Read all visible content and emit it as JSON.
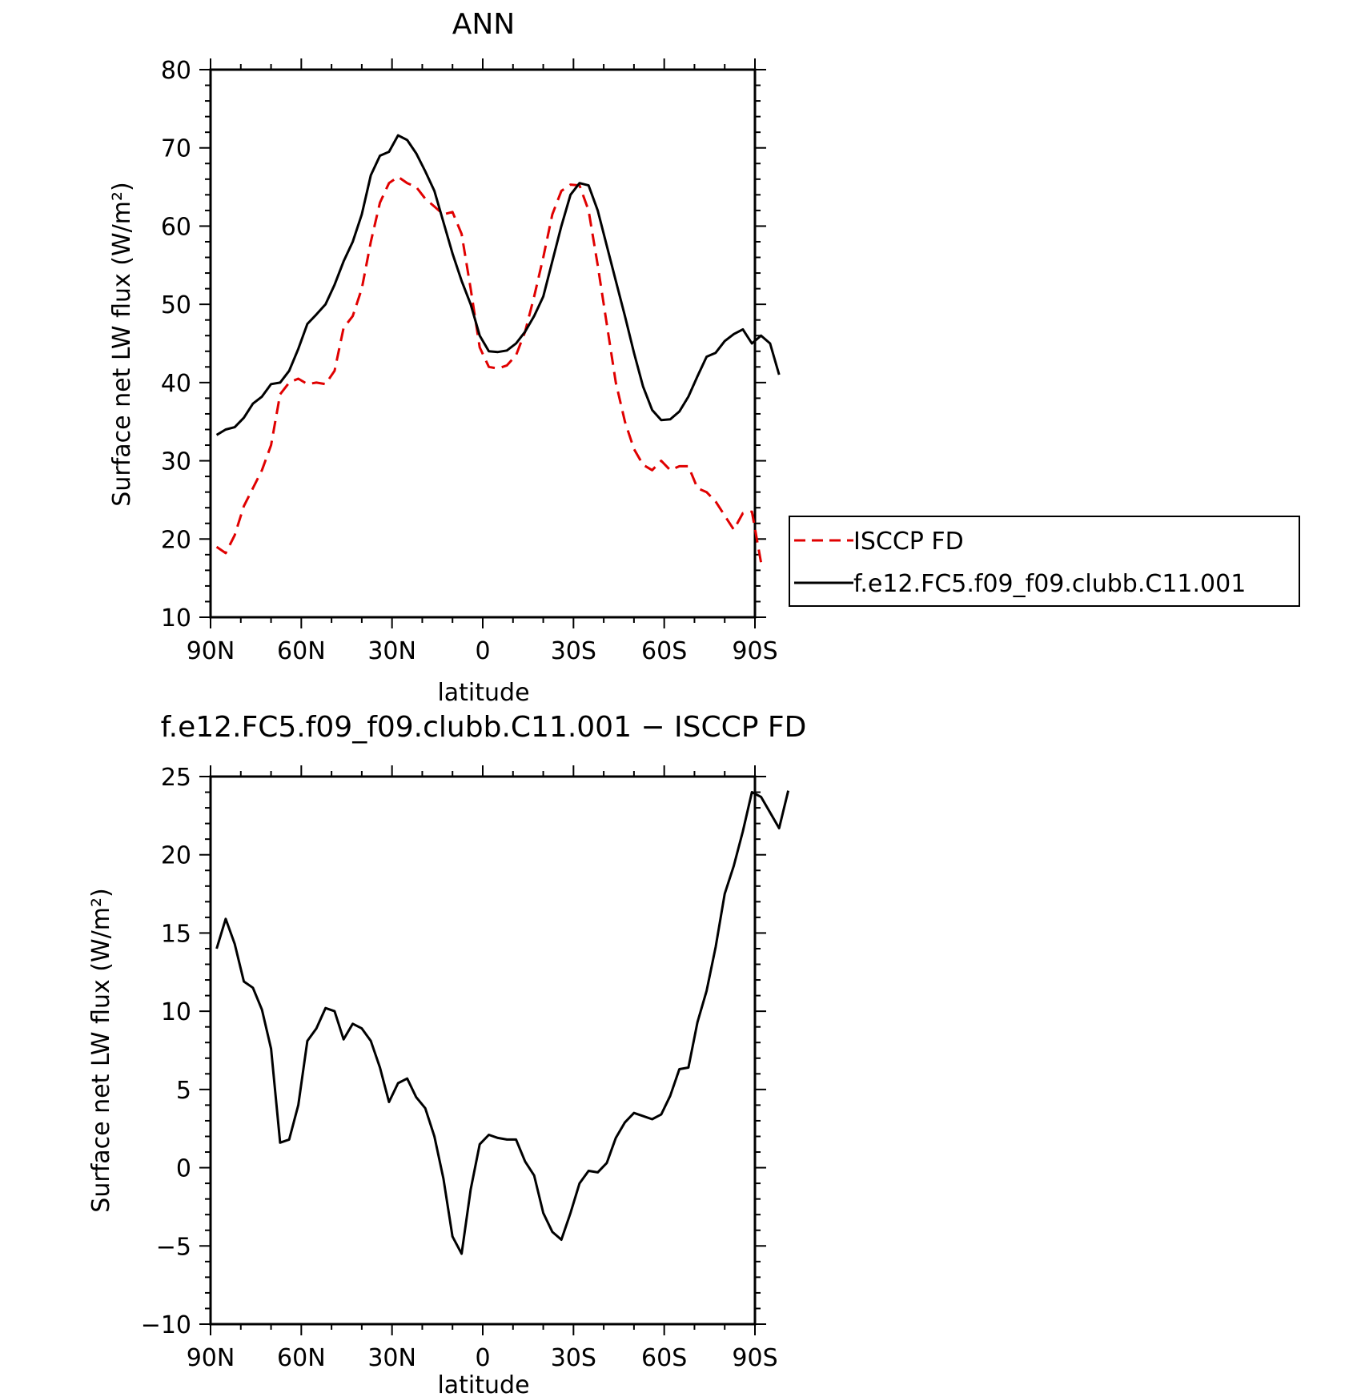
{
  "chart_data": [
    {
      "type": "line",
      "title": "ANN",
      "xlabel": "latitude",
      "ylabel": "Surface net LW flux (W/m²)",
      "xlim": [
        90,
        -90
      ],
      "ylim": [
        10,
        80
      ],
      "x_ticks": [
        {
          "value": 90,
          "label": "90N"
        },
        {
          "value": 60,
          "label": "60N"
        },
        {
          "value": 30,
          "label": "30N"
        },
        {
          "value": 0,
          "label": "0"
        },
        {
          "value": -30,
          "label": "30S"
        },
        {
          "value": -60,
          "label": "60S"
        },
        {
          "value": -90,
          "label": "90S"
        }
      ],
      "y_ticks": [
        10,
        20,
        30,
        40,
        50,
        60,
        70,
        80
      ],
      "grid": false,
      "legend": {
        "placement": "right-outside"
      },
      "series": [
        {
          "name": "ISCCP FD",
          "color": "#e00000",
          "dash": "dashed",
          "points": [
            [
              88,
              19
            ],
            [
              85,
              18.2
            ],
            [
              82,
              20.5
            ],
            [
              79,
              24.2
            ],
            [
              76,
              26.5
            ],
            [
              73,
              28.8
            ],
            [
              70,
              32
            ],
            [
              67,
              38.5
            ],
            [
              64,
              40
            ],
            [
              61,
              40.5
            ],
            [
              58,
              39.8
            ],
            [
              55,
              40
            ],
            [
              52,
              39.8
            ],
            [
              49,
              41.5
            ],
            [
              46,
              47
            ],
            [
              43,
              48.5
            ],
            [
              40,
              52
            ],
            [
              37,
              58
            ],
            [
              34,
              63
            ],
            [
              31,
              65.5
            ],
            [
              28,
              66.3
            ],
            [
              25,
              65.5
            ],
            [
              22,
              65
            ],
            [
              19,
              63.5
            ],
            [
              16,
              62.5
            ],
            [
              13,
              61.5
            ],
            [
              10,
              61.8
            ],
            [
              7,
              59
            ],
            [
              4,
              52
            ],
            [
              1,
              44.5
            ],
            [
              -2,
              42
            ],
            [
              -5,
              41.8
            ],
            [
              -8,
              42.2
            ],
            [
              -11,
              43.5
            ],
            [
              -14,
              46.5
            ],
            [
              -17,
              51
            ],
            [
              -20,
              56
            ],
            [
              -23,
              61.5
            ],
            [
              -26,
              64.5
            ],
            [
              -29,
              65.3
            ],
            [
              -32,
              65.2
            ],
            [
              -35,
              62
            ],
            [
              -38,
              55
            ],
            [
              -41,
              47.5
            ],
            [
              -44,
              40
            ],
            [
              -47,
              35
            ],
            [
              -50,
              31.5
            ],
            [
              -53,
              29.5
            ],
            [
              -56,
              28.8
            ],
            [
              -59,
              30
            ],
            [
              -62,
              28.8
            ],
            [
              -65,
              29.3
            ],
            [
              -68,
              29.3
            ],
            [
              -71,
              26.5
            ],
            [
              -74,
              26
            ],
            [
              -77,
              24.8
            ],
            [
              -80,
              23
            ],
            [
              -83,
              21.2
            ],
            [
              -86,
              23.3
            ],
            [
              -89,
              23.5
            ],
            [
              -92,
              17
            ]
          ]
        },
        {
          "name": "f.e12.FC5.f09_f09.clubb.C11.001",
          "color": "#000000",
          "dash": "solid",
          "points": [
            [
              88,
              33.3
            ],
            [
              85,
              34
            ],
            [
              82,
              34.3
            ],
            [
              79,
              35.5
            ],
            [
              76,
              37.3
            ],
            [
              73,
              38.2
            ],
            [
              70,
              39.8
            ],
            [
              67,
              40
            ],
            [
              64,
              41.5
            ],
            [
              61,
              44.3
            ],
            [
              58,
              47.5
            ],
            [
              55,
              48.7
            ],
            [
              52,
              50
            ],
            [
              49,
              52.5
            ],
            [
              46,
              55.5
            ],
            [
              43,
              58
            ],
            [
              40,
              61.5
            ],
            [
              37,
              66.5
            ],
            [
              34,
              69
            ],
            [
              31,
              69.5
            ],
            [
              28,
              71.6
            ],
            [
              25,
              71
            ],
            [
              22,
              69.3
            ],
            [
              19,
              67
            ],
            [
              16,
              64.5
            ],
            [
              13,
              60.5
            ],
            [
              10,
              56.5
            ],
            [
              7,
              53
            ],
            [
              4,
              50
            ],
            [
              1,
              46
            ],
            [
              -2,
              44
            ],
            [
              -5,
              43.9
            ],
            [
              -8,
              44.1
            ],
            [
              -11,
              45
            ],
            [
              -14,
              46.5
            ],
            [
              -17,
              48.5
            ],
            [
              -20,
              51
            ],
            [
              -23,
              55.5
            ],
            [
              -26,
              60
            ],
            [
              -29,
              64
            ],
            [
              -32,
              65.5
            ],
            [
              -35,
              65.2
            ],
            [
              -38,
              62
            ],
            [
              -41,
              57.5
            ],
            [
              -44,
              53
            ],
            [
              -47,
              48.5
            ],
            [
              -50,
              43.8
            ],
            [
              -53,
              39.5
            ],
            [
              -56,
              36.5
            ],
            [
              -59,
              35.2
            ],
            [
              -62,
              35.3
            ],
            [
              -65,
              36.3
            ],
            [
              -68,
              38.2
            ],
            [
              -71,
              40.8
            ],
            [
              -74,
              43.3
            ],
            [
              -77,
              43.8
            ],
            [
              -80,
              45.3
            ],
            [
              -83,
              46.2
            ],
            [
              -86,
              46.8
            ],
            [
              -89,
              45
            ],
            [
              -92,
              46
            ],
            [
              -95,
              45
            ],
            [
              -98,
              41
            ]
          ]
        }
      ]
    },
    {
      "type": "line",
      "title": "f.e12.FC5.f09_f09.clubb.C11.001 − ISCCP FD",
      "xlabel": "latitude",
      "ylabel": "Surface net LW flux (W/m²)",
      "xlim": [
        90,
        -90
      ],
      "ylim": [
        -10,
        25
      ],
      "x_ticks": [
        {
          "value": 90,
          "label": "90N"
        },
        {
          "value": 60,
          "label": "60N"
        },
        {
          "value": 30,
          "label": "30N"
        },
        {
          "value": 0,
          "label": "0"
        },
        {
          "value": -30,
          "label": "30S"
        },
        {
          "value": -60,
          "label": "60S"
        },
        {
          "value": -90,
          "label": "90S"
        }
      ],
      "y_ticks": [
        -10,
        -5,
        0,
        5,
        10,
        15,
        20,
        25
      ],
      "grid": false,
      "series": [
        {
          "color": "#000000",
          "dash": "solid",
          "points": [
            [
              88,
              14
            ],
            [
              85,
              15.9
            ],
            [
              82,
              14.3
            ],
            [
              79,
              11.9
            ],
            [
              76,
              11.5
            ],
            [
              73,
              10.1
            ],
            [
              70,
              7.6
            ],
            [
              67,
              1.6
            ],
            [
              64,
              1.8
            ],
            [
              61,
              4
            ],
            [
              58,
              8.1
            ],
            [
              55,
              8.9
            ],
            [
              52,
              10.2
            ],
            [
              49,
              10
            ],
            [
              46,
              8.2
            ],
            [
              43,
              9.2
            ],
            [
              40,
              8.9
            ],
            [
              37,
              8.1
            ],
            [
              34,
              6.4
            ],
            [
              31,
              4.2
            ],
            [
              28,
              5.4
            ],
            [
              25,
              5.7
            ],
            [
              22,
              4.5
            ],
            [
              19,
              3.8
            ],
            [
              16,
              2
            ],
            [
              13,
              -0.7
            ],
            [
              10,
              -4.4
            ],
            [
              7,
              -5.5
            ],
            [
              4,
              -1.4
            ],
            [
              1,
              1.5
            ],
            [
              -2,
              2.1
            ],
            [
              -5,
              1.9
            ],
            [
              -8,
              1.8
            ],
            [
              -11,
              1.8
            ],
            [
              -14,
              0.4
            ],
            [
              -17,
              -0.5
            ],
            [
              -20,
              -2.9
            ],
            [
              -23,
              -4.1
            ],
            [
              -26,
              -4.6
            ],
            [
              -29,
              -2.9
            ],
            [
              -32,
              -1
            ],
            [
              -35,
              -0.2
            ],
            [
              -38,
              -0.3
            ],
            [
              -41,
              0.3
            ],
            [
              -44,
              1.9
            ],
            [
              -47,
              2.9
            ],
            [
              -50,
              3.5
            ],
            [
              -53,
              3.3
            ],
            [
              -56,
              3.1
            ],
            [
              -59,
              3.4
            ],
            [
              -62,
              4.6
            ],
            [
              -65,
              6.3
            ],
            [
              -68,
              6.4
            ],
            [
              -71,
              9.3
            ],
            [
              -74,
              11.3
            ],
            [
              -77,
              14.1
            ],
            [
              -80,
              17.5
            ],
            [
              -83,
              19.3
            ],
            [
              -86,
              21.5
            ],
            [
              -89,
              24
            ],
            [
              -92,
              23.7
            ],
            [
              -95,
              22.7
            ],
            [
              -98,
              21.7
            ],
            [
              -101,
              24.1
            ]
          ]
        }
      ]
    }
  ],
  "legend_items": [
    {
      "label": "ISCCP FD",
      "color": "#e00000",
      "dash": "dashed"
    },
    {
      "label": "f.e12.FC5.f09_f09.clubb.C11.001",
      "color": "#000000",
      "dash": "solid"
    }
  ]
}
